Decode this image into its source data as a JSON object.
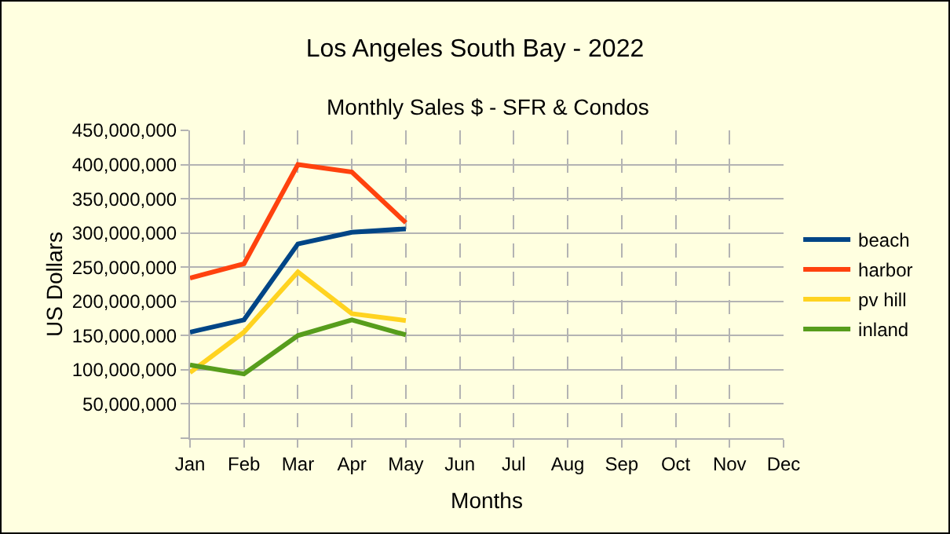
{
  "chart_data": {
    "type": "line",
    "title": "Los Angeles South Bay - 2022",
    "subtitle": "Monthly Sales $ - SFR & Condos",
    "xlabel": "Months",
    "ylabel": "US Dollars",
    "categories": [
      "Jan",
      "Feb",
      "Mar",
      "Apr",
      "May",
      "Jun",
      "Jul",
      "Aug",
      "Sep",
      "Oct",
      "Nov",
      "Dec"
    ],
    "series": [
      {
        "name": "beach",
        "color": "#004586",
        "values": [
          155000000,
          173000000,
          284000000,
          301000000,
          306000000,
          null,
          null,
          null,
          null,
          null,
          null,
          null
        ]
      },
      {
        "name": "harbor",
        "color": "#ff420e",
        "values": [
          234000000,
          255000000,
          400000000,
          389000000,
          315000000,
          null,
          null,
          null,
          null,
          null,
          null,
          null
        ]
      },
      {
        "name": "pv hill",
        "color": "#ffd320",
        "values": [
          96000000,
          155000000,
          243000000,
          182000000,
          172000000,
          null,
          null,
          null,
          null,
          null,
          null,
          null
        ]
      },
      {
        "name": "inland",
        "color": "#579d1c",
        "values": [
          107000000,
          94000000,
          150000000,
          173000000,
          151000000,
          null,
          null,
          null,
          null,
          null,
          null,
          null
        ]
      }
    ],
    "ylim": [
      0,
      450000000
    ],
    "yticks": [
      {
        "value": 0,
        "label": null
      },
      {
        "value": 50000000,
        "label": "50,000,000"
      },
      {
        "value": 100000000,
        "label": "100,000,000"
      },
      {
        "value": 150000000,
        "label": "150,000,000"
      },
      {
        "value": 200000000,
        "label": "200,000,000"
      },
      {
        "value": 250000000,
        "label": "250,000,000"
      },
      {
        "value": 300000000,
        "label": "300,000,000"
      },
      {
        "value": 350000000,
        "label": "350,000,000"
      },
      {
        "value": 400000000,
        "label": "400,000,000"
      },
      {
        "value": 450000000,
        "label": "450,000,000"
      }
    ],
    "grid": true,
    "legend": "right",
    "marker": "none",
    "line_style": "solid"
  }
}
